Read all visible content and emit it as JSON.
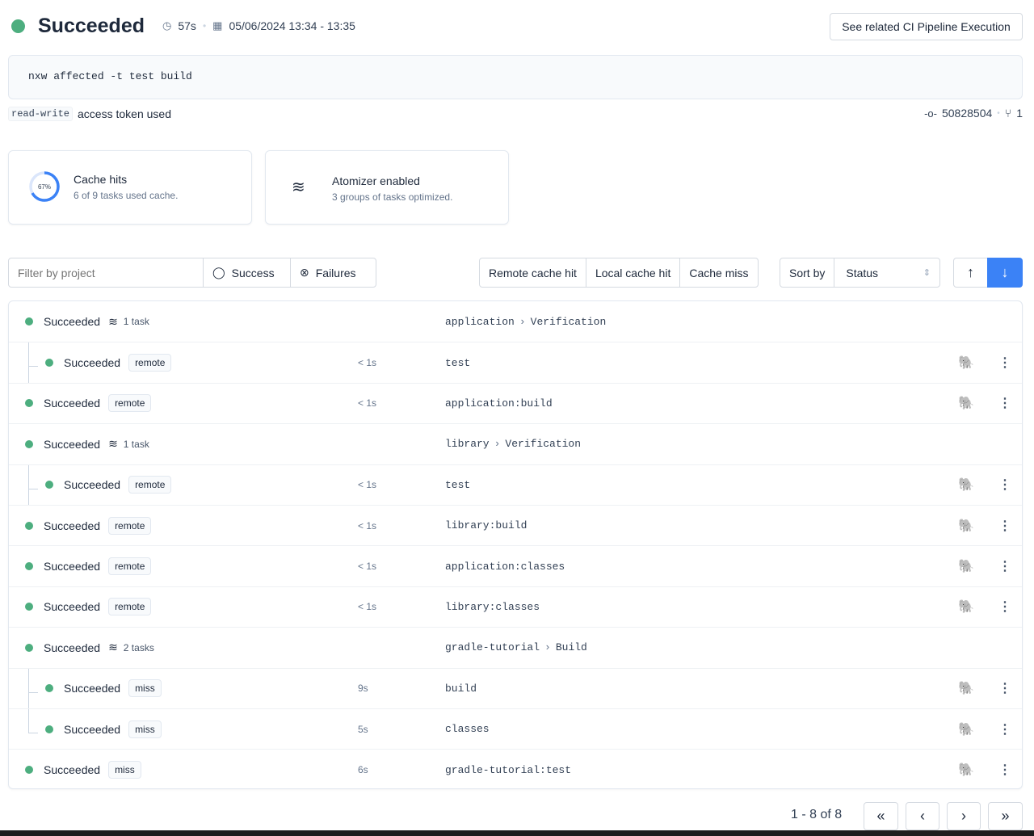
{
  "header": {
    "status": "Succeeded",
    "duration": "57s",
    "date_range": "05/06/2024 13:34 - 13:35",
    "related_button": "See related CI Pipeline Execution",
    "status_color": "#4dae7f"
  },
  "command": "nxw affected -t test build",
  "token": {
    "badge": "read-write",
    "text": "access token used"
  },
  "commit": {
    "sha": "50828504",
    "branches": "1"
  },
  "cards": {
    "cache": {
      "percent_label": "67%",
      "percent": 67,
      "title": "Cache hits",
      "subtitle": "6 of 9 tasks used cache."
    },
    "atomizer": {
      "title": "Atomizer enabled",
      "subtitle": "3 groups of tasks optimized."
    }
  },
  "filters": {
    "placeholder": "Filter by project",
    "success": "Success",
    "failures": "Failures",
    "remote": "Remote cache hit",
    "local": "Local cache hit",
    "miss": "Cache miss",
    "sort_label": "Sort by",
    "sort_value": "Status"
  },
  "rows": [
    {
      "level": 0,
      "status": "Succeeded",
      "group": "1 task",
      "project": "application",
      "target": "Verification"
    },
    {
      "level": 1,
      "status": "Succeeded",
      "cache": "remote",
      "duration": "< 1s",
      "name": "test"
    },
    {
      "level": 0,
      "status": "Succeeded",
      "cache": "remote",
      "duration": "< 1s",
      "name": "application:build"
    },
    {
      "level": 0,
      "status": "Succeeded",
      "group": "1 task",
      "project": "library",
      "target": "Verification"
    },
    {
      "level": 1,
      "status": "Succeeded",
      "cache": "remote",
      "duration": "< 1s",
      "name": "test"
    },
    {
      "level": 0,
      "status": "Succeeded",
      "cache": "remote",
      "duration": "< 1s",
      "name": "library:build"
    },
    {
      "level": 0,
      "status": "Succeeded",
      "cache": "remote",
      "duration": "< 1s",
      "name": "application:classes"
    },
    {
      "level": 0,
      "status": "Succeeded",
      "cache": "remote",
      "duration": "< 1s",
      "name": "library:classes"
    },
    {
      "level": 0,
      "status": "Succeeded",
      "group": "2 tasks",
      "project": "gradle-tutorial",
      "target": "Build"
    },
    {
      "level": 1,
      "status": "Succeeded",
      "cache": "miss",
      "duration": "9s",
      "name": "build"
    },
    {
      "level": 1,
      "status": "Succeeded",
      "cache": "miss",
      "duration": "5s",
      "name": "classes",
      "last": true
    },
    {
      "level": 0,
      "status": "Succeeded",
      "cache": "miss",
      "duration": "6s",
      "name": "gradle-tutorial:test"
    }
  ],
  "pagination": {
    "label": "1 - 8 of 8"
  }
}
